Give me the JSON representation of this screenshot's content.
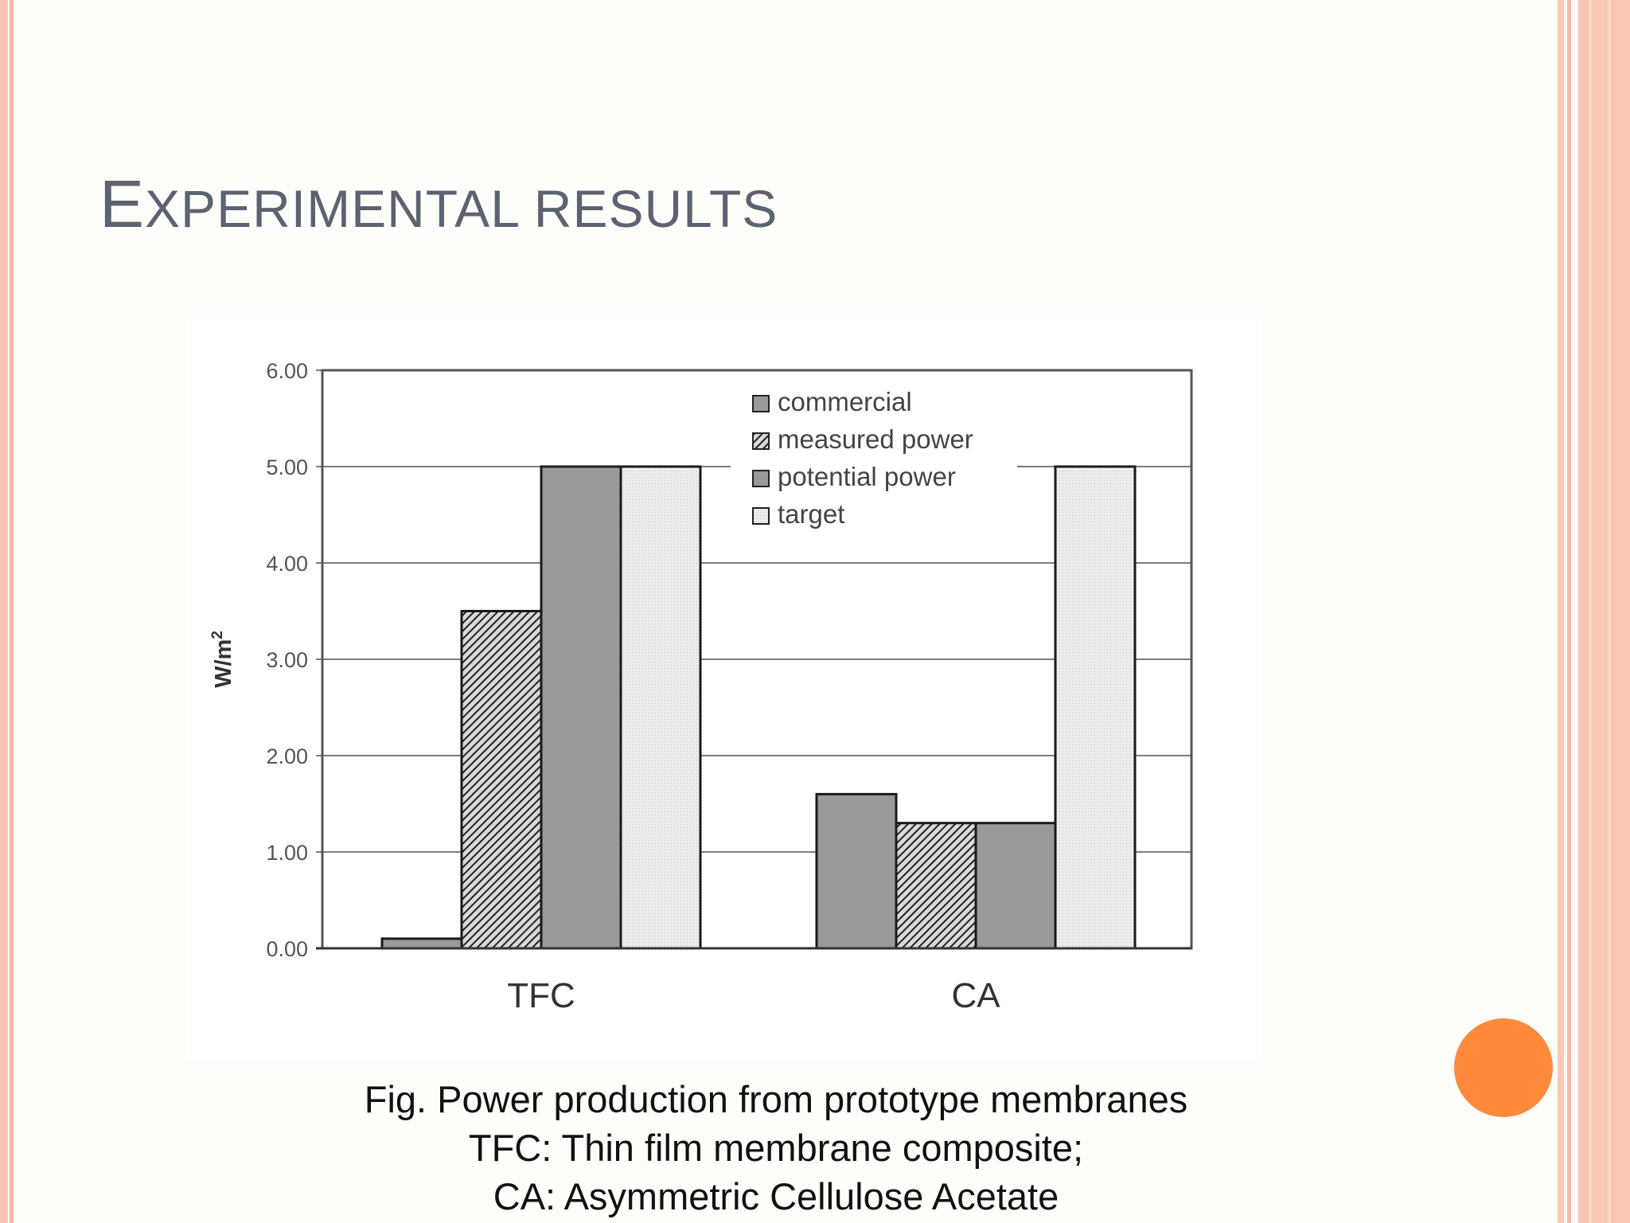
{
  "slide": {
    "title_initial": "E",
    "title_rest": "XPERIMENTAL RESULTS",
    "caption_lines": [
      "Fig. Power production from prototype membranes",
      "TFC: Thin film membrane composite;",
      "CA: Asymmetric Cellulose Acetate"
    ]
  },
  "theme": {
    "title_color": "#5d6270",
    "accent_orange": "#ff8a3c",
    "stripe_color": "#f9c9b6",
    "bar_fill": "#999999",
    "target_fill": "#e6e6e6"
  },
  "chart_data": {
    "type": "bar",
    "categories": [
      "TFC",
      "CA"
    ],
    "series": [
      {
        "name": "commercial",
        "values": [
          0.1,
          1.6
        ],
        "pattern": "solid"
      },
      {
        "name": "measured power",
        "values": [
          3.5,
          1.3
        ],
        "pattern": "hatched"
      },
      {
        "name": "potential power",
        "values": [
          5.0,
          1.3
        ],
        "pattern": "solid"
      },
      {
        "name": "target",
        "values": [
          5.0,
          5.0
        ],
        "pattern": "dotted-light"
      }
    ],
    "ylabel": "W/m",
    "ylabel_superscript": "2",
    "ylim": [
      0,
      6
    ],
    "yticks": [
      "0.00",
      "1.00",
      "2.00",
      "3.00",
      "4.00",
      "5.00",
      "6.00"
    ],
    "grid": true,
    "legend_position": "top-center"
  }
}
